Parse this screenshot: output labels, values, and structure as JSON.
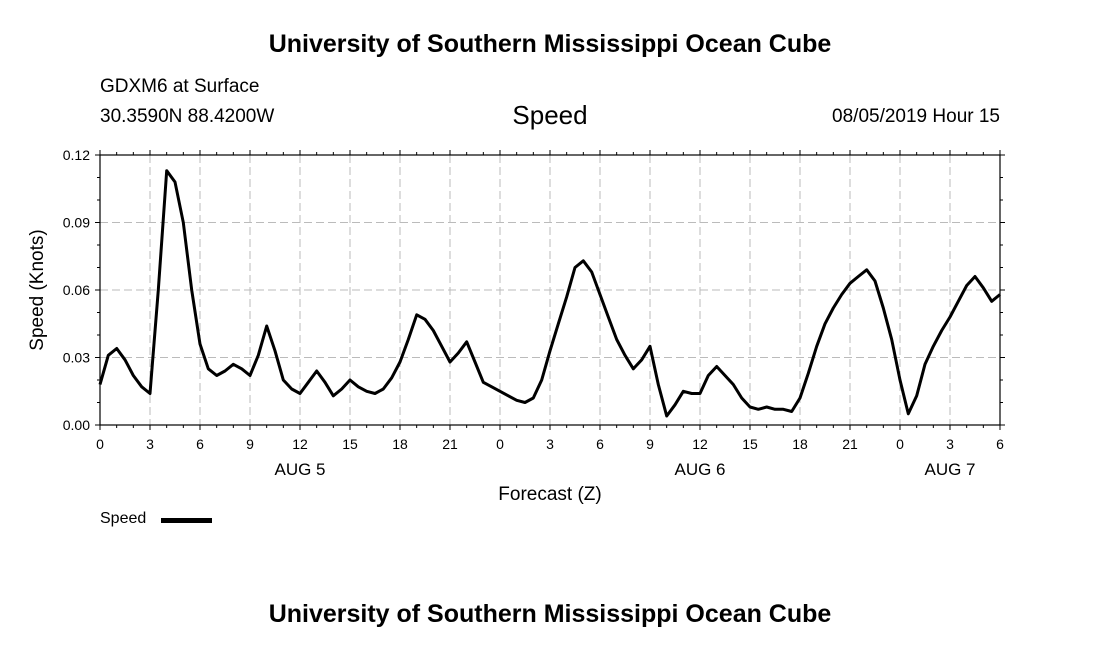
{
  "header": {
    "top_title": "University of Southern Mississippi Ocean Cube",
    "station": "GDXM6 at Surface",
    "coords": "30.3590N 88.4200W",
    "chart_title": "Speed",
    "date": "08/05/2019 Hour 15",
    "bottom_title": "University of Southern Mississippi Ocean Cube"
  },
  "chart_data": {
    "type": "line",
    "title": "Speed",
    "xlabel": "Forecast (Z)",
    "ylabel": "Speed (Knots)",
    "ylim": [
      0,
      0.12
    ],
    "yticks": [
      "0.00",
      "0.03",
      "0.06",
      "0.09",
      "0.12"
    ],
    "xlim": [
      0,
      54
    ],
    "xtick_labels": [
      "0",
      "3",
      "6",
      "9",
      "12",
      "15",
      "18",
      "21",
      "0",
      "3",
      "6",
      "9",
      "12",
      "15",
      "18",
      "21",
      "0",
      "3",
      "6"
    ],
    "day_labels": [
      {
        "hour": 12,
        "label": "AUG 5"
      },
      {
        "hour": 36,
        "label": "AUG 6"
      },
      {
        "hour": 51,
        "label": "AUG 7"
      }
    ],
    "grid": true,
    "legend": "bottom-left",
    "series": [
      {
        "name": "Speed",
        "color": "#000000",
        "x": [
          0,
          0.5,
          1,
          1.5,
          2,
          2.5,
          3,
          3.5,
          4,
          4.5,
          5,
          5.5,
          6,
          6.5,
          7,
          7.5,
          8,
          8.5,
          9,
          9.5,
          10,
          10.5,
          11,
          11.5,
          12,
          12.5,
          13,
          13.5,
          14,
          14.5,
          15,
          15.5,
          16,
          16.5,
          17,
          17.5,
          18,
          18.5,
          19,
          19.5,
          20,
          20.5,
          21,
          21.5,
          22,
          22.5,
          23,
          23.5,
          24,
          24.5,
          25,
          25.5,
          26,
          26.5,
          27,
          27.5,
          28,
          28.5,
          29,
          29.5,
          30,
          30.5,
          31,
          31.5,
          32,
          32.5,
          33,
          33.5,
          34,
          34.5,
          35,
          35.5,
          36,
          36.5,
          37,
          37.5,
          38,
          38.5,
          39,
          39.5,
          40,
          40.5,
          41,
          41.5,
          42,
          42.5,
          43,
          43.5,
          44,
          44.5,
          45,
          45.5,
          46,
          46.5,
          47,
          47.5,
          48,
          48.5,
          49,
          49.5,
          50,
          50.5,
          51,
          51.5,
          52,
          52.5,
          53,
          53.5,
          54
        ],
        "values": [
          0.018,
          0.031,
          0.034,
          0.029,
          0.022,
          0.017,
          0.014,
          0.06,
          0.113,
          0.108,
          0.09,
          0.06,
          0.036,
          0.025,
          0.022,
          0.024,
          0.027,
          0.025,
          0.022,
          0.031,
          0.044,
          0.033,
          0.02,
          0.016,
          0.014,
          0.019,
          0.024,
          0.019,
          0.013,
          0.016,
          0.02,
          0.017,
          0.015,
          0.014,
          0.016,
          0.021,
          0.028,
          0.038,
          0.049,
          0.047,
          0.042,
          0.035,
          0.028,
          0.032,
          0.037,
          0.028,
          0.019,
          0.017,
          0.015,
          0.013,
          0.011,
          0.01,
          0.012,
          0.02,
          0.033,
          0.045,
          0.057,
          0.07,
          0.073,
          0.068,
          0.058,
          0.048,
          0.038,
          0.031,
          0.025,
          0.029,
          0.035,
          0.018,
          0.004,
          0.009,
          0.015,
          0.014,
          0.014,
          0.022,
          0.026,
          0.022,
          0.018,
          0.012,
          0.008,
          0.007,
          0.008,
          0.007,
          0.007,
          0.006,
          0.012,
          0.023,
          0.035,
          0.045,
          0.052,
          0.058,
          0.063,
          0.066,
          0.069,
          0.064,
          0.052,
          0.038,
          0.02,
          0.005,
          0.013,
          0.027,
          0.035,
          0.042,
          0.048,
          0.055,
          0.062,
          0.066,
          0.061,
          0.055,
          0.058
        ]
      }
    ]
  }
}
